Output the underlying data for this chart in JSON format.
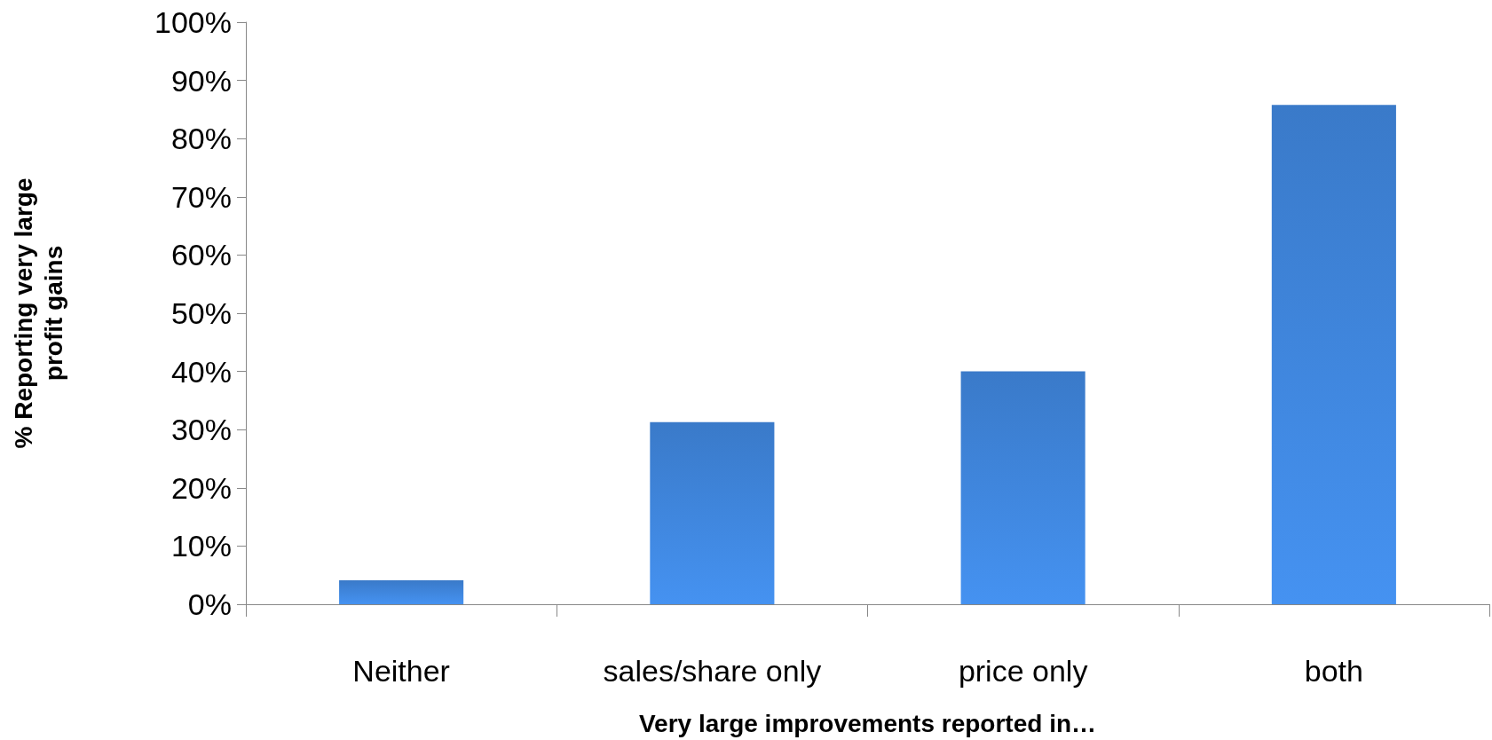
{
  "chart_data": {
    "type": "bar",
    "xlabel": "Very large improvements reported in…",
    "ylabel": "% Reporting very large\nprofit gains",
    "categories": [
      "Neither",
      "sales/share only",
      "price only",
      "both"
    ],
    "values": [
      4.1,
      31.3,
      40,
      85.8
    ],
    "color": "#3a7ac9",
    "ylim": [
      0,
      100
    ],
    "yticks": [
      {
        "value": 0,
        "label": "0%"
      },
      {
        "value": 10,
        "label": "10%"
      },
      {
        "value": 20,
        "label": "20%"
      },
      {
        "value": 30,
        "label": "30%"
      },
      {
        "value": 40,
        "label": "40%"
      },
      {
        "value": 50,
        "label": "50%"
      },
      {
        "value": 60,
        "label": "60%"
      },
      {
        "value": 70,
        "label": "70%"
      },
      {
        "value": 80,
        "label": "80%"
      },
      {
        "value": 90,
        "label": "90%"
      },
      {
        "value": 100,
        "label": "100%"
      }
    ],
    "grid": false
  }
}
